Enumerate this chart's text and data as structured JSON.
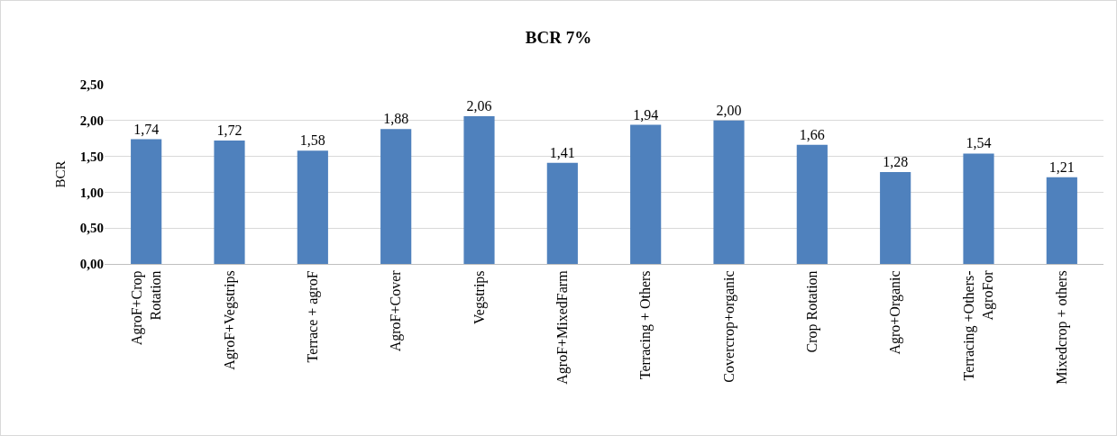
{
  "chart_data": {
    "type": "bar",
    "title": "BCR 7%",
    "ylabel": "BCR",
    "categories": [
      "AgroF+Crop\nRotation",
      "AgroF+Vegstrips",
      "Terrace + agroF",
      "AgroF+Cover",
      "Vegstrips",
      "AgroF+MixedFarm",
      "Terracing + Others",
      "Covercrop+organic",
      "Crop Rotation",
      "Agro+Organic",
      "Terracing +Others-\nAgroFor",
      "Mixedcrop + others"
    ],
    "values": [
      1.74,
      1.72,
      1.58,
      1.88,
      2.06,
      1.41,
      1.94,
      2.0,
      1.66,
      1.28,
      1.54,
      1.21
    ],
    "value_labels": [
      "1,74",
      "1,72",
      "1,58",
      "1,88",
      "2,06",
      "1,41",
      "1,94",
      "2,00",
      "1,66",
      "1,28",
      "1,54",
      "1,21"
    ],
    "color": "#4f81bd",
    "ylim": [
      0,
      2.5
    ],
    "yticks": [
      {
        "value": 0,
        "label": "0,00"
      },
      {
        "value": 0.5,
        "label": "0,50"
      },
      {
        "value": 1,
        "label": "1,00"
      },
      {
        "value": 1.5,
        "label": "1,50"
      },
      {
        "value": 2,
        "label": "2,00"
      },
      {
        "value": 2.5,
        "label": "2,50"
      }
    ],
    "grid": "y",
    "legend": false
  }
}
